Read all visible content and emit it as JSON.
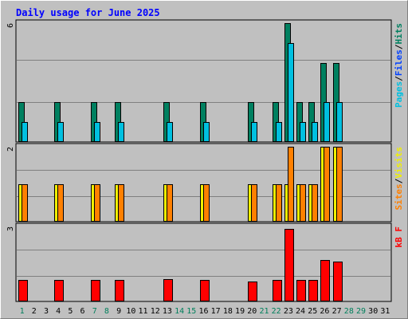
{
  "chart_data": {
    "type": "bar",
    "title": "Daily usage for June 2025",
    "days": [
      "1",
      "2",
      "3",
      "4",
      "5",
      "6",
      "7",
      "8",
      "9",
      "10",
      "11",
      "12",
      "13",
      "14",
      "15",
      "16",
      "17",
      "18",
      "19",
      "20",
      "21",
      "22",
      "23",
      "24",
      "25",
      "26",
      "27",
      "28",
      "29",
      "30",
      "31"
    ],
    "weekend_days": [
      "1",
      "7",
      "8",
      "14",
      "15",
      "21",
      "22",
      "28",
      "29"
    ],
    "panels": [
      {
        "id": "hits-files-pages",
        "scale_max_label": "6",
        "scale_max": 6,
        "legend": [
          {
            "text": "Pages",
            "color": "#00c0e0"
          },
          {
            "text": "/",
            "color": "#000000"
          },
          {
            "text": "Files",
            "color": "#0040ff"
          },
          {
            "text": "/",
            "color": "#000000"
          },
          {
            "text": "Hits",
            "color": "#008060"
          }
        ],
        "series": [
          {
            "name": "Hits",
            "color": "#008060",
            "values": [
              2,
              0,
              0,
              2,
              0,
              0,
              2,
              0,
              2,
              0,
              0,
              0,
              2,
              0,
              0,
              2,
              0,
              0,
              0,
              2,
              0,
              2,
              6,
              2,
              2,
              4,
              4,
              0,
              0,
              0,
              0
            ]
          },
          {
            "name": "Files",
            "color": "#0040ff",
            "values": [
              0,
              0,
              0,
              0,
              0,
              0,
              0,
              0,
              0,
              0,
              0,
              0,
              0,
              0,
              0,
              0,
              0,
              0,
              0,
              0,
              0,
              0,
              0,
              0,
              0,
              0,
              0,
              0,
              0,
              0,
              0
            ]
          },
          {
            "name": "Pages",
            "color": "#00c0e0",
            "values": [
              1,
              0,
              0,
              1,
              0,
              0,
              1,
              0,
              1,
              0,
              0,
              0,
              1,
              0,
              0,
              1,
              0,
              0,
              0,
              1,
              0,
              1,
              5,
              1,
              1,
              2,
              2,
              0,
              0,
              0,
              0
            ]
          }
        ]
      },
      {
        "id": "visits-sites",
        "scale_max_label": "2",
        "scale_max": 2,
        "legend": [
          {
            "text": "Sites",
            "color": "#ff8000"
          },
          {
            "text": "/",
            "color": "#000000"
          },
          {
            "text": "Visits",
            "color": "#f0f000"
          }
        ],
        "series": [
          {
            "name": "Visits",
            "color": "#f0f000",
            "values": [
              1,
              0,
              0,
              1,
              0,
              0,
              1,
              0,
              1,
              0,
              0,
              0,
              1,
              0,
              0,
              1,
              0,
              0,
              0,
              1,
              0,
              1,
              1,
              1,
              1,
              2,
              2,
              0,
              0,
              0,
              0
            ]
          },
          {
            "name": "Sites",
            "color": "#ff8000",
            "values": [
              1,
              0,
              0,
              1,
              0,
              0,
              1,
              0,
              1,
              0,
              0,
              0,
              1,
              0,
              0,
              1,
              0,
              0,
              0,
              1,
              0,
              1,
              2,
              1,
              1,
              2,
              2,
              0,
              0,
              0,
              0
            ]
          }
        ]
      },
      {
        "id": "kbytes",
        "scale_max_label": "3",
        "scale_max": 3,
        "legend": [
          {
            "text": "kB F",
            "color": "#ff0000"
          }
        ],
        "series": [
          {
            "name": "kB F",
            "color": "#ff0000",
            "values": [
              0.85,
              0,
              0,
              0.85,
              0,
              0,
              0.85,
              0,
              0.85,
              0,
              0,
              0,
              0.9,
              0,
              0,
              0.85,
              0,
              0,
              0,
              0.8,
              0,
              0.85,
              2.9,
              0.85,
              0.85,
              1.65,
              1.6,
              0,
              0,
              0,
              0
            ]
          }
        ]
      }
    ]
  }
}
